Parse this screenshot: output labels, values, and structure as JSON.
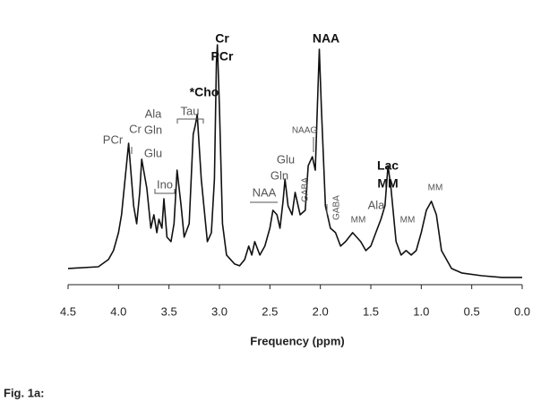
{
  "chart_data": {
    "type": "line",
    "xlabel": "Frequency (ppm)",
    "caption": "Fig. 1a:",
    "color": "#111111",
    "xlim": [
      4.5,
      0.0
    ],
    "ylim": [
      0,
      100
    ],
    "xticks": [
      4.5,
      {
        "value": 4,
        "label": "4.0"
      },
      3.5,
      {
        "value": 3,
        "label": "3.0"
      },
      2.5,
      {
        "value": 2,
        "label": "2.0"
      },
      1.5,
      {
        "value": 1,
        "label": "1.0"
      },
      0.5,
      {
        "value": 0,
        "label": "0.0"
      }
    ],
    "x": [
      4.5,
      4.2,
      4.1,
      4.05,
      4.0,
      3.97,
      3.9,
      3.85,
      3.82,
      3.79,
      3.77,
      3.72,
      3.68,
      3.65,
      3.62,
      3.6,
      3.57,
      3.55,
      3.52,
      3.48,
      3.45,
      3.42,
      3.38,
      3.35,
      3.3,
      3.26,
      3.24,
      3.22,
      3.18,
      3.12,
      3.08,
      3.05,
      3.03,
      3.02,
      3.0,
      2.97,
      2.93,
      2.85,
      2.8,
      2.75,
      2.71,
      2.68,
      2.65,
      2.6,
      2.55,
      2.5,
      2.47,
      2.43,
      2.4,
      2.37,
      2.35,
      2.32,
      2.28,
      2.25,
      2.2,
      2.15,
      2.12,
      2.08,
      2.05,
      2.03,
      2.01,
      1.99,
      1.95,
      1.9,
      1.85,
      1.8,
      1.75,
      1.68,
      1.6,
      1.55,
      1.5,
      1.45,
      1.4,
      1.36,
      1.33,
      1.3,
      1.25,
      1.2,
      1.15,
      1.1,
      1.05,
      1.0,
      0.95,
      0.9,
      0.85,
      0.8,
      0.7,
      0.6,
      0.4,
      0.2,
      0.0
    ],
    "values": [
      6.5,
      7.2,
      10.1,
      13.7,
      20.9,
      28.1,
      56.8,
      31.7,
      24.5,
      37.1,
      50.4,
      38.8,
      22.7,
      28.1,
      20.9,
      26.3,
      22.7,
      34.5,
      19.1,
      17.3,
      24.5,
      46.0,
      31.7,
      19.1,
      24.5,
      60.4,
      64.0,
      68.3,
      42.4,
      17.3,
      20.9,
      42.4,
      89.2,
      96.4,
      71.2,
      24.5,
      11.9,
      8.3,
      7.6,
      10.1,
      15.5,
      11.9,
      17.3,
      11.9,
      15.5,
      22.7,
      29.9,
      28.1,
      22.7,
      33.5,
      42.4,
      31.7,
      28.1,
      37.1,
      28.1,
      29.9,
      47.8,
      51.4,
      46.0,
      71.2,
      94.6,
      71.2,
      31.7,
      22.7,
      20.9,
      15.5,
      17.3,
      20.9,
      17.3,
      13.7,
      15.5,
      20.9,
      26.3,
      31.7,
      47.8,
      38.8,
      17.3,
      11.9,
      13.7,
      11.9,
      13.7,
      20.9,
      29.9,
      33.5,
      28.1,
      13.7,
      6.5,
      4.7,
      3.6,
      2.9,
      2.9
    ],
    "annotations": [
      "Cr",
      "PCr",
      "NAA",
      "*Cho",
      "Ala",
      "Cr",
      "Gln",
      "PCr",
      "Glu",
      "Tau",
      "Ino",
      "NAAG",
      "Glu",
      "Gln",
      "NAA",
      "GABA",
      "GABA",
      "Lac",
      "MM",
      "Ala",
      "MM",
      "MM",
      "MM"
    ]
  }
}
